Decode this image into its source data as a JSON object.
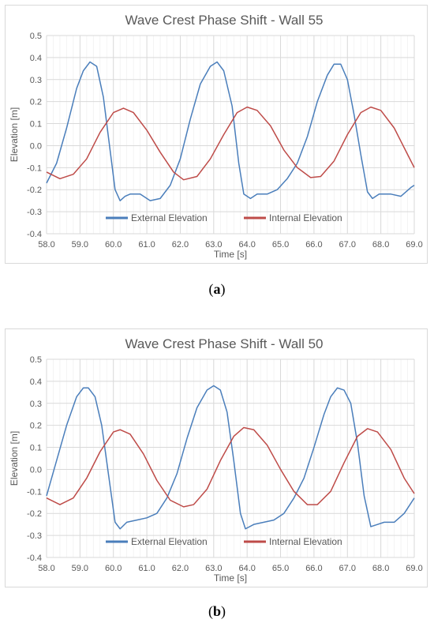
{
  "colors": {
    "external": "#4a7ebb",
    "internal": "#be4b48",
    "grid": "#d9d9d9",
    "minor_grid": "#efefef",
    "axis_text": "#595959",
    "title": "#595959"
  },
  "chart_data": [
    {
      "type": "line",
      "title": "Wave Crest Phase Shift - Wall 55",
      "xlabel": "Time [s]",
      "ylabel": "Elevation [m]",
      "xlim": [
        58.0,
        69.0
      ],
      "ylim": [
        -0.4,
        0.5
      ],
      "x_ticks": [
        "58.0",
        "59.0",
        "60.0",
        "61.0",
        "62.0",
        "63.0",
        "64.0",
        "65.0",
        "66.0",
        "67.0",
        "68.0",
        "69.0"
      ],
      "y_ticks": [
        "0.5",
        "0.4",
        "0.3",
        "0.2",
        "0.1",
        "0.0",
        "-0.1",
        "-0.2",
        "-0.3",
        "-0.4"
      ],
      "grid": true,
      "legend_position": "bottom-inside",
      "caption_letter": "a",
      "series": [
        {
          "name": "External Elevation",
          "color_key": "external",
          "x": [
            58.0,
            58.3,
            58.6,
            58.9,
            59.1,
            59.3,
            59.5,
            59.7,
            59.9,
            60.05,
            60.2,
            60.35,
            60.5,
            60.8,
            61.1,
            61.4,
            61.7,
            62.0,
            62.3,
            62.6,
            62.9,
            63.1,
            63.3,
            63.55,
            63.75,
            63.9,
            64.1,
            64.3,
            64.6,
            64.9,
            65.2,
            65.5,
            65.8,
            66.1,
            66.4,
            66.6,
            66.8,
            67.0,
            67.2,
            67.4,
            67.6,
            67.75,
            67.95,
            68.3,
            68.6,
            68.9,
            69.0
          ],
          "y": [
            -0.17,
            -0.08,
            0.08,
            0.26,
            0.34,
            0.38,
            0.36,
            0.22,
            -0.02,
            -0.2,
            -0.25,
            -0.23,
            -0.22,
            -0.22,
            -0.25,
            -0.24,
            -0.18,
            -0.06,
            0.12,
            0.28,
            0.36,
            0.38,
            0.34,
            0.18,
            -0.08,
            -0.22,
            -0.24,
            -0.22,
            -0.22,
            -0.2,
            -0.15,
            -0.08,
            0.04,
            0.2,
            0.32,
            0.37,
            0.37,
            0.3,
            0.14,
            -0.04,
            -0.21,
            -0.24,
            -0.22,
            -0.22,
            -0.23,
            -0.19,
            -0.18
          ]
        },
        {
          "name": "Internal Elevation",
          "color_key": "internal",
          "x": [
            58.0,
            58.4,
            58.8,
            59.2,
            59.6,
            60.0,
            60.3,
            60.6,
            61.0,
            61.4,
            61.8,
            62.1,
            62.5,
            62.9,
            63.3,
            63.7,
            64.0,
            64.3,
            64.7,
            65.1,
            65.5,
            65.9,
            66.2,
            66.6,
            67.0,
            67.4,
            67.7,
            68.0,
            68.4,
            68.8,
            69.0
          ],
          "y": [
            -0.12,
            -0.15,
            -0.13,
            -0.06,
            0.06,
            0.15,
            0.17,
            0.15,
            0.07,
            -0.03,
            -0.12,
            -0.155,
            -0.14,
            -0.06,
            0.05,
            0.15,
            0.175,
            0.16,
            0.09,
            -0.02,
            -0.1,
            -0.145,
            -0.14,
            -0.07,
            0.05,
            0.15,
            0.175,
            0.16,
            0.08,
            -0.04,
            -0.1
          ]
        }
      ]
    },
    {
      "type": "line",
      "title": "Wave Crest Phase Shift - Wall 50",
      "xlabel": "Time [s]",
      "ylabel": "Elevation [m]",
      "xlim": [
        58.0,
        69.0
      ],
      "ylim": [
        -0.4,
        0.5
      ],
      "x_ticks": [
        "58.0",
        "59.0",
        "60.0",
        "61.0",
        "62.0",
        "63.0",
        "64.0",
        "65.0",
        "66.0",
        "67.0",
        "68.0",
        "69.0"
      ],
      "y_ticks": [
        "0.5",
        "0.4",
        "0.3",
        "0.2",
        "0.1",
        "0.0",
        "-0.1",
        "-0.2",
        "-0.3",
        "-0.4"
      ],
      "grid": true,
      "legend_position": "bottom-inside",
      "caption_letter": "b",
      "series": [
        {
          "name": "External Elevation",
          "color_key": "external",
          "x": [
            58.0,
            58.3,
            58.6,
            58.9,
            59.1,
            59.25,
            59.45,
            59.65,
            59.85,
            60.05,
            60.2,
            60.4,
            60.7,
            61.0,
            61.3,
            61.6,
            61.9,
            62.2,
            62.5,
            62.8,
            63.0,
            63.2,
            63.4,
            63.6,
            63.8,
            63.95,
            64.2,
            64.5,
            64.8,
            65.1,
            65.4,
            65.7,
            66.0,
            66.3,
            66.5,
            66.7,
            66.9,
            67.1,
            67.3,
            67.5,
            67.7,
            67.9,
            68.1,
            68.4,
            68.7,
            69.0
          ],
          "y": [
            -0.12,
            0.04,
            0.2,
            0.33,
            0.37,
            0.37,
            0.33,
            0.2,
            -0.02,
            -0.24,
            -0.27,
            -0.24,
            -0.23,
            -0.22,
            -0.2,
            -0.13,
            -0.02,
            0.14,
            0.28,
            0.36,
            0.38,
            0.36,
            0.26,
            0.04,
            -0.2,
            -0.27,
            -0.25,
            -0.24,
            -0.23,
            -0.2,
            -0.13,
            -0.04,
            0.1,
            0.25,
            0.33,
            0.37,
            0.36,
            0.3,
            0.12,
            -0.12,
            -0.26,
            -0.25,
            -0.24,
            -0.24,
            -0.2,
            -0.13
          ]
        },
        {
          "name": "Internal Elevation",
          "color_key": "internal",
          "x": [
            58.0,
            58.4,
            58.8,
            59.2,
            59.6,
            60.0,
            60.2,
            60.5,
            60.9,
            61.3,
            61.7,
            62.1,
            62.4,
            62.8,
            63.2,
            63.6,
            63.9,
            64.2,
            64.6,
            65.0,
            65.4,
            65.8,
            66.1,
            66.5,
            66.9,
            67.3,
            67.6,
            67.9,
            68.3,
            68.7,
            69.0
          ],
          "y": [
            -0.13,
            -0.16,
            -0.13,
            -0.04,
            0.08,
            0.17,
            0.18,
            0.16,
            0.07,
            -0.05,
            -0.14,
            -0.17,
            -0.16,
            -0.09,
            0.04,
            0.15,
            0.19,
            0.18,
            0.11,
            0.0,
            -0.1,
            -0.16,
            -0.16,
            -0.1,
            0.03,
            0.15,
            0.185,
            0.17,
            0.09,
            -0.04,
            -0.11
          ]
        }
      ]
    }
  ]
}
